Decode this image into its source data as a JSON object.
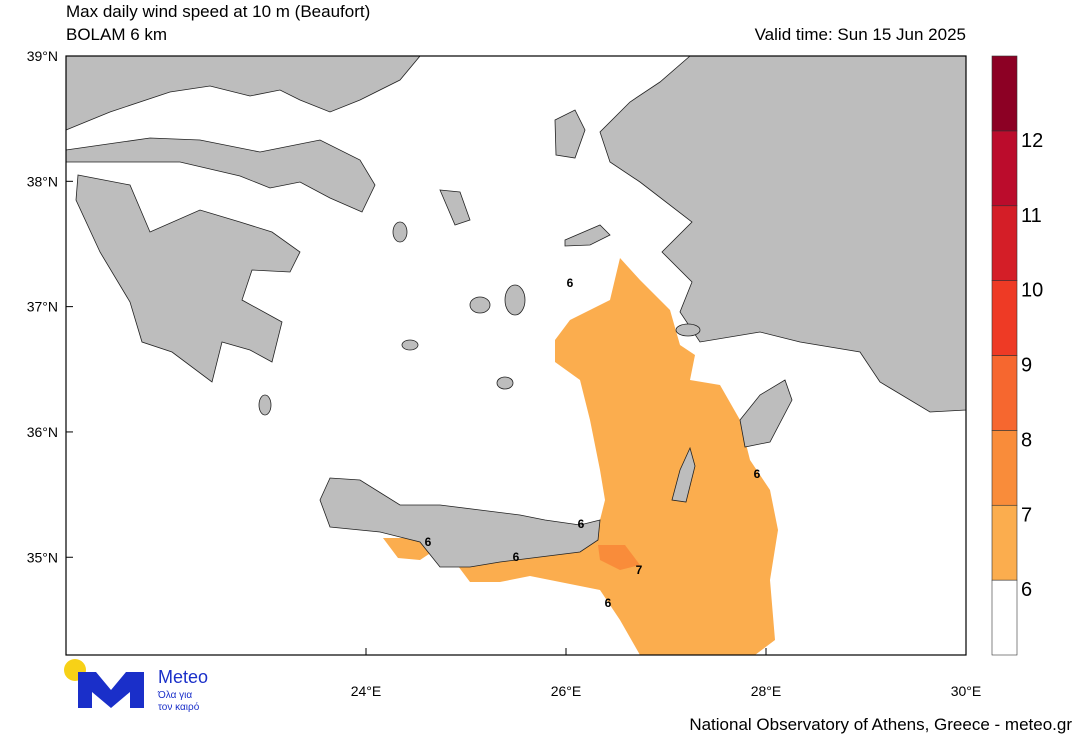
{
  "header": {
    "title": "Max daily wind speed at 10 m (Beaufort)",
    "model": "BOLAM 6 km",
    "valid_time": "Valid time: Sun 15 Jun 2025"
  },
  "map": {
    "lon_range": [
      21,
      30
    ],
    "lat_range": [
      34.22,
      39
    ],
    "lon_ticks": [
      {
        "value": 24,
        "label": "24°E"
      },
      {
        "value": 26,
        "label": "26°E"
      },
      {
        "value": 28,
        "label": "28°E"
      },
      {
        "value": 30,
        "label": "30°E"
      }
    ],
    "lat_ticks": [
      {
        "value": 39,
        "label": "39°N"
      },
      {
        "value": 38,
        "label": "38°N"
      },
      {
        "value": 37,
        "label": "37°N"
      },
      {
        "value": 36,
        "label": "36°N"
      },
      {
        "value": 35,
        "label": "35°N"
      }
    ],
    "contour_labels": [
      6,
      6,
      6,
      6,
      6,
      7,
      6
    ]
  },
  "colorbar": {
    "levels": [
      6,
      7,
      8,
      9,
      10,
      11,
      12
    ],
    "colors": [
      "#ffffff",
      "#fbad4e",
      "#f98c3a",
      "#f6672f",
      "#ee3a25",
      "#d41e27",
      "#bb0c2c",
      "#8c0024"
    ]
  },
  "logo": {
    "name": "Meteo",
    "line1": "Όλα για",
    "line2": "τον καιρό"
  },
  "footer": "National Observatory of Athens, Greece - meteo.gr"
}
